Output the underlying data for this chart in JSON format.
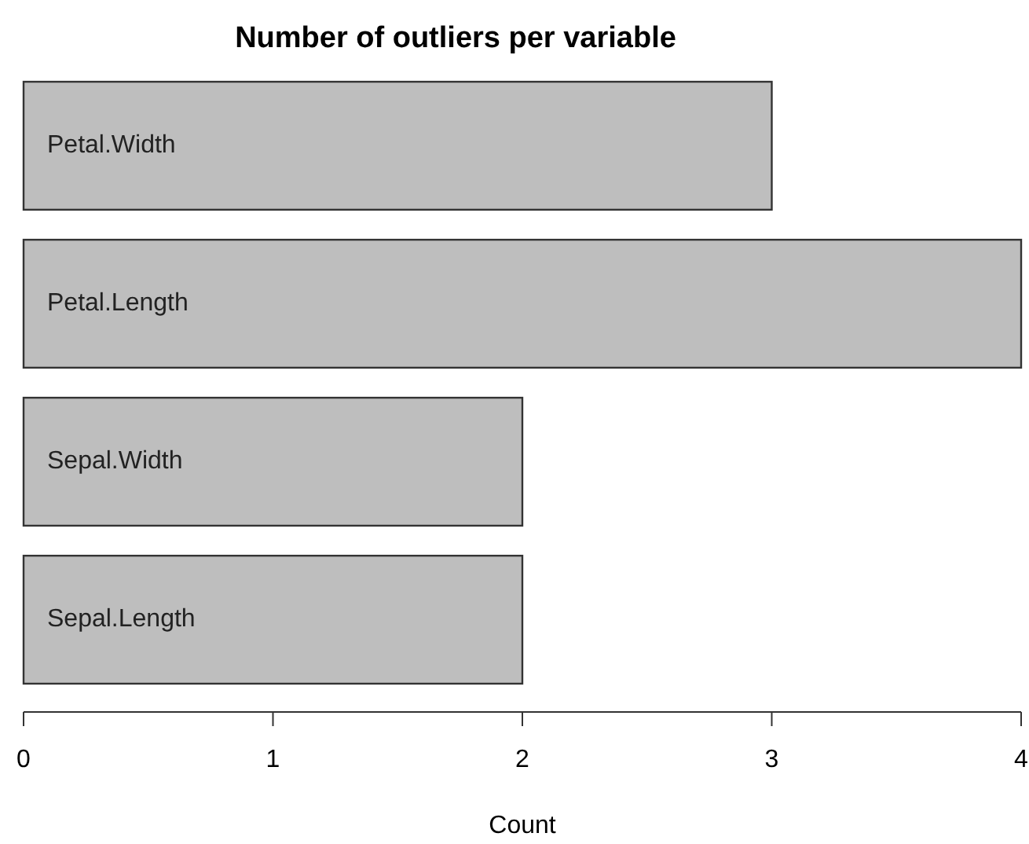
{
  "chart_data": {
    "type": "bar",
    "orientation": "horizontal",
    "title": "Number of outliers per variable",
    "xlabel": "Count",
    "categories": [
      "Petal.Width",
      "Petal.Length",
      "Sepal.Width",
      "Sepal.Length"
    ],
    "values": [
      3,
      4,
      2,
      2
    ],
    "color": "#bebebe",
    "xlim": [
      0,
      4
    ],
    "xticks": [
      0,
      1,
      2,
      3,
      4
    ]
  }
}
